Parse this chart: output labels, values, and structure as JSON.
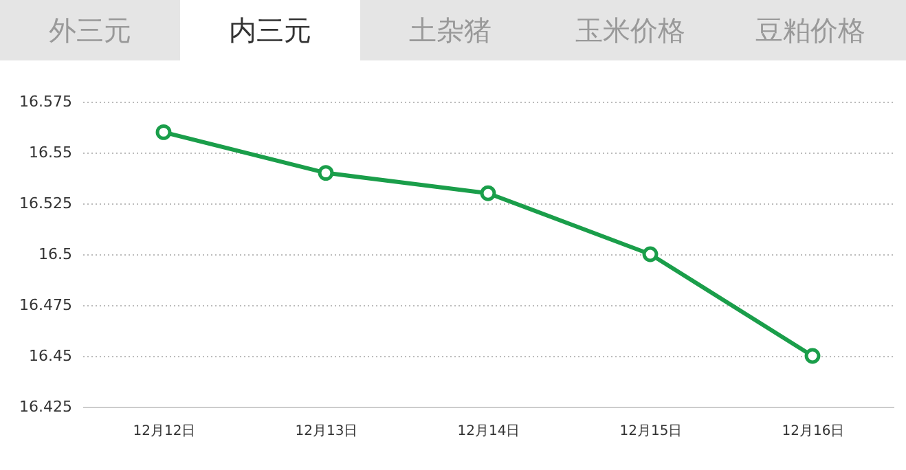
{
  "chart_data": {
    "type": "line",
    "categories": [
      "12月12日",
      "12月13日",
      "12月14日",
      "12月15日",
      "12月16日"
    ],
    "series": [
      {
        "color": "#1a9e4a",
        "values": [
          16.56,
          16.54,
          16.53,
          16.5,
          16.45
        ]
      }
    ],
    "ylim": [
      16.425,
      16.575
    ],
    "yticks": [
      16.425,
      16.45,
      16.475,
      16.5,
      16.525,
      16.55,
      16.575
    ],
    "grid": "y",
    "marker": "circle",
    "line_style": "solid",
    "annotations": [
      "外三元",
      "内三元",
      "土杂猪",
      "玉米价格",
      "豆粕价格"
    ]
  }
}
